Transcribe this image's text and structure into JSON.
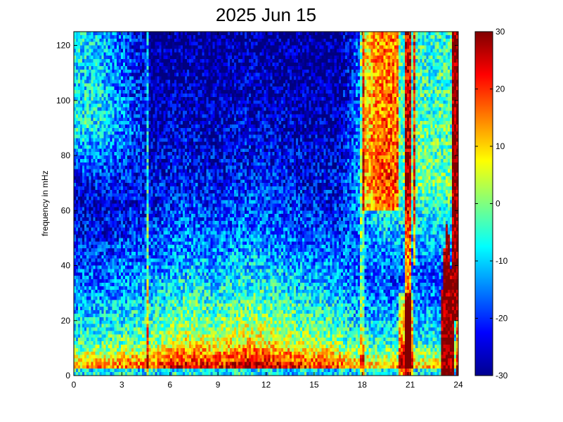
{
  "chart_data": {
    "type": "heatmap",
    "title": "2025 Jun 15",
    "xlabel": "",
    "ylabel": "frequency in mHz",
    "xlim": [
      0,
      24
    ],
    "ylim": [
      0,
      125
    ],
    "x_ticks": [
      "0",
      "3",
      "6",
      "9",
      "12",
      "15",
      "18",
      "21",
      "24"
    ],
    "y_ticks": [
      "0",
      "20",
      "40",
      "60",
      "80",
      "100",
      "120"
    ],
    "colorbar": {
      "range": [
        -30,
        30
      ],
      "ticks": [
        "-30",
        "-20",
        "-10",
        "0",
        "10",
        "20",
        "30"
      ],
      "colormap": "jet"
    },
    "bins": {
      "x_count": 180,
      "y_count": 100
    },
    "grid": false
  }
}
